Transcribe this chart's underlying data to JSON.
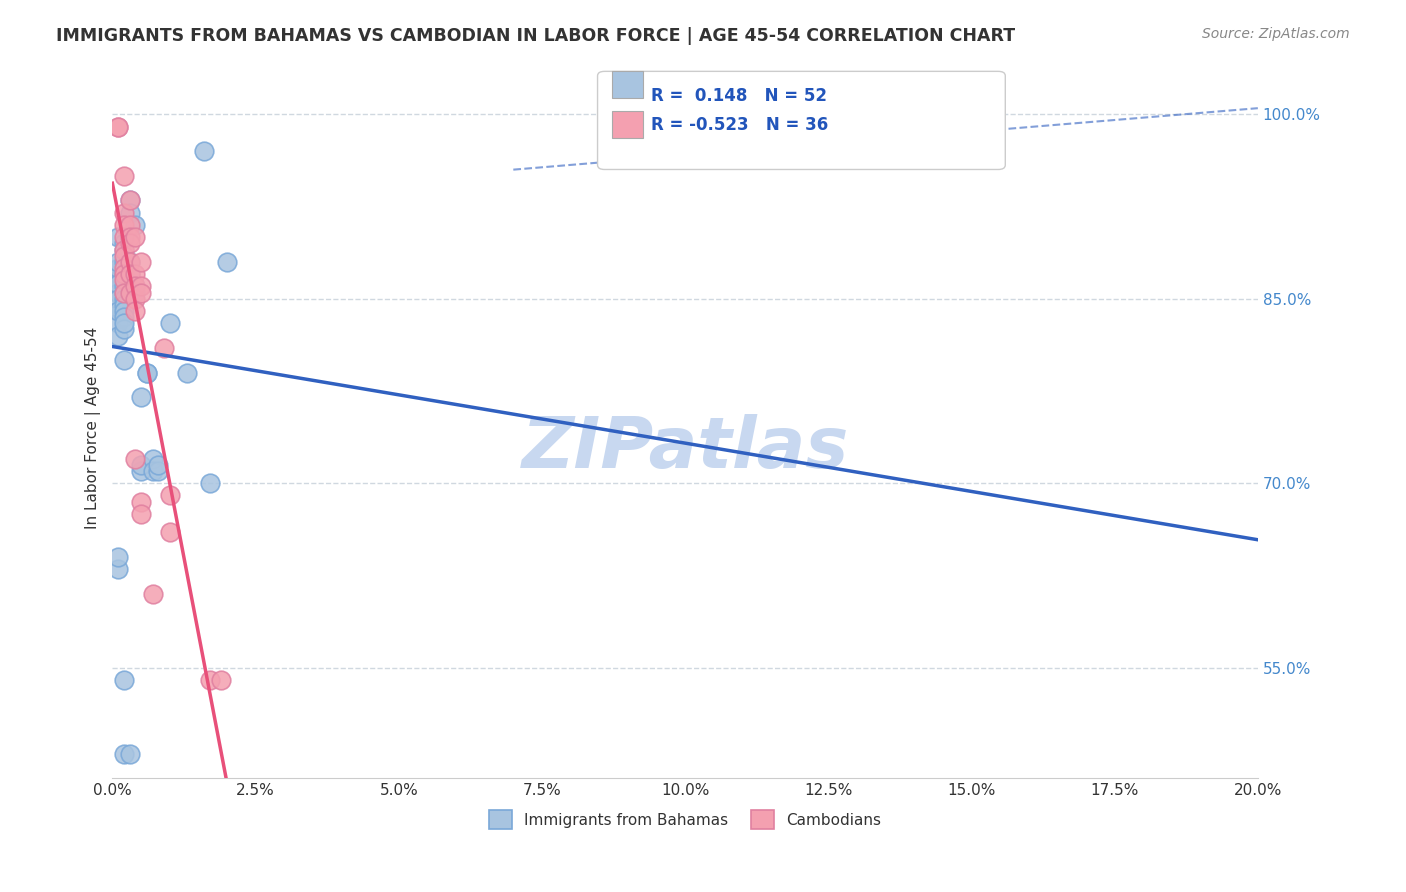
{
  "title": "IMMIGRANTS FROM BAHAMAS VS CAMBODIAN IN LABOR FORCE | AGE 45-54 CORRELATION CHART",
  "source": "Source: ZipAtlas.com",
  "ylabel": "In Labor Force | Age 45-54",
  "ytick_labels": [
    "55.0%",
    "70.0%",
    "85.0%",
    "100.0%"
  ],
  "ytick_values": [
    0.55,
    0.7,
    0.85,
    1.0
  ],
  "xlim": [
    0.0,
    0.2
  ],
  "ylim": [
    0.46,
    1.03
  ],
  "r_blue": 0.148,
  "n_blue": 52,
  "r_pink": -0.523,
  "n_pink": 36,
  "legend_label_blue": "Immigrants from Bahamas",
  "legend_label_pink": "Cambodians",
  "blue_color": "#a8c4e0",
  "pink_color": "#f4a0b0",
  "blue_line_color": "#3060c0",
  "pink_line_color": "#e8507a",
  "blue_scatter": [
    [
      0.001,
      0.84
    ],
    [
      0.001,
      0.87
    ],
    [
      0.001,
      0.865
    ],
    [
      0.001,
      0.875
    ],
    [
      0.001,
      0.88
    ],
    [
      0.001,
      0.855
    ],
    [
      0.001,
      0.862
    ],
    [
      0.001,
      0.9
    ],
    [
      0.001,
      0.85
    ],
    [
      0.001,
      0.83
    ],
    [
      0.001,
      0.82
    ],
    [
      0.001,
      0.84
    ],
    [
      0.002,
      0.895
    ],
    [
      0.002,
      0.89
    ],
    [
      0.002,
      0.88
    ],
    [
      0.002,
      0.87
    ],
    [
      0.002,
      0.86
    ],
    [
      0.002,
      0.855
    ],
    [
      0.002,
      0.85
    ],
    [
      0.002,
      0.845
    ],
    [
      0.002,
      0.84
    ],
    [
      0.002,
      0.835
    ],
    [
      0.002,
      0.825
    ],
    [
      0.002,
      0.83
    ],
    [
      0.002,
      0.8
    ],
    [
      0.003,
      0.93
    ],
    [
      0.003,
      0.92
    ],
    [
      0.003,
      0.88
    ],
    [
      0.003,
      0.87
    ],
    [
      0.003,
      0.86
    ],
    [
      0.004,
      0.91
    ],
    [
      0.004,
      0.86
    ],
    [
      0.004,
      0.855
    ],
    [
      0.005,
      0.77
    ],
    [
      0.005,
      0.71
    ],
    [
      0.005,
      0.715
    ],
    [
      0.006,
      0.79
    ],
    [
      0.006,
      0.79
    ],
    [
      0.007,
      0.72
    ],
    [
      0.007,
      0.71
    ],
    [
      0.008,
      0.71
    ],
    [
      0.008,
      0.715
    ],
    [
      0.01,
      0.83
    ],
    [
      0.013,
      0.79
    ],
    [
      0.016,
      0.97
    ],
    [
      0.002,
      0.54
    ],
    [
      0.002,
      0.48
    ],
    [
      0.003,
      0.48
    ],
    [
      0.001,
      0.63
    ],
    [
      0.001,
      0.64
    ],
    [
      0.017,
      0.7
    ],
    [
      0.02,
      0.88
    ]
  ],
  "pink_scatter": [
    [
      0.001,
      0.99
    ],
    [
      0.001,
      0.99
    ],
    [
      0.002,
      0.95
    ],
    [
      0.002,
      0.92
    ],
    [
      0.002,
      0.91
    ],
    [
      0.002,
      0.9
    ],
    [
      0.002,
      0.89
    ],
    [
      0.002,
      0.885
    ],
    [
      0.002,
      0.875
    ],
    [
      0.002,
      0.87
    ],
    [
      0.002,
      0.865
    ],
    [
      0.002,
      0.855
    ],
    [
      0.003,
      0.93
    ],
    [
      0.003,
      0.91
    ],
    [
      0.003,
      0.9
    ],
    [
      0.003,
      0.895
    ],
    [
      0.003,
      0.88
    ],
    [
      0.003,
      0.87
    ],
    [
      0.003,
      0.855
    ],
    [
      0.004,
      0.9
    ],
    [
      0.004,
      0.87
    ],
    [
      0.004,
      0.86
    ],
    [
      0.004,
      0.85
    ],
    [
      0.004,
      0.84
    ],
    [
      0.004,
      0.72
    ],
    [
      0.005,
      0.88
    ],
    [
      0.005,
      0.86
    ],
    [
      0.005,
      0.855
    ],
    [
      0.005,
      0.685
    ],
    [
      0.005,
      0.675
    ],
    [
      0.007,
      0.61
    ],
    [
      0.009,
      0.81
    ],
    [
      0.01,
      0.69
    ],
    [
      0.01,
      0.66
    ],
    [
      0.017,
      0.54
    ],
    [
      0.019,
      0.54
    ]
  ],
  "watermark": "ZIPatlas",
  "watermark_color": "#c8d8f0",
  "background_color": "#ffffff",
  "grid_color": "#d0d8e0"
}
